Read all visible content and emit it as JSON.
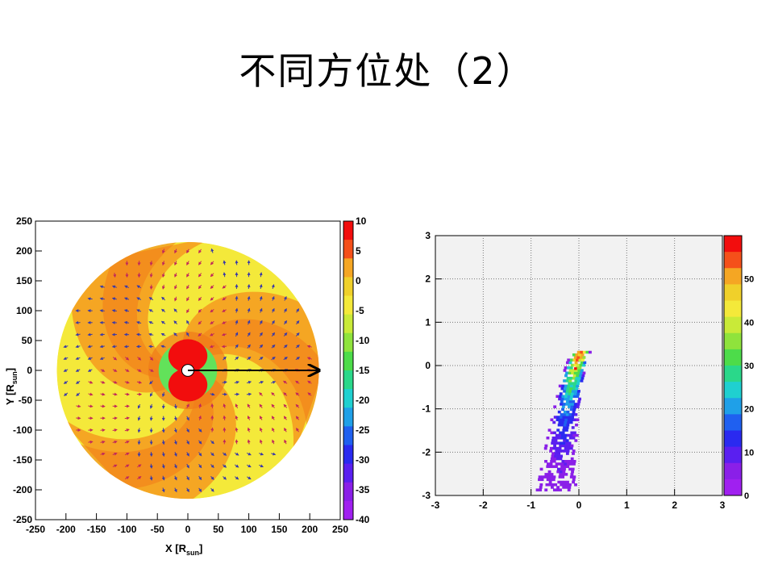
{
  "slide": {
    "title": "不同方位处（2）"
  },
  "chart_data": [
    {
      "type": "heatmap",
      "subtype": "polar-field-map-with-arrows",
      "xlabel": "X [R",
      "xlabel_sub": "sun",
      "xlabel_close": "]",
      "ylabel": "Y [R",
      "ylabel_sub": "sun",
      "ylabel_close": "]",
      "xlim": [
        -250,
        250
      ],
      "ylim": [
        -250,
        250
      ],
      "x_ticks": [
        -250,
        -200,
        -150,
        -100,
        -50,
        0,
        50,
        100,
        150,
        200,
        250
      ],
      "y_ticks": [
        -250,
        -200,
        -150,
        -100,
        -50,
        0,
        50,
        100,
        150,
        200,
        250
      ],
      "colorbar": {
        "min": -40,
        "max": 10,
        "ticks": [
          10,
          5,
          0,
          -5,
          -10,
          -15,
          -20,
          -25,
          -30,
          -35,
          -40
        ]
      },
      "outer_radius": 215,
      "spiral_sectors": 3,
      "line_arrow": {
        "from": [
          0,
          0
        ],
        "to": [
          215,
          0
        ]
      },
      "grid": false,
      "colors": {
        "orange": "#f5a623",
        "dark_orange": "#f07a1a",
        "yellow": "#f4e93a",
        "green": "#62e25a",
        "red": "#f20d0d",
        "arrow_red": "#c0285a",
        "arrow_blue": "#3a3aa8"
      }
    },
    {
      "type": "heatmap",
      "subtype": "2d-histogram",
      "xlim": [
        -3,
        3
      ],
      "ylim": [
        -3,
        3
      ],
      "x_ticks": [
        -3,
        -2,
        -1,
        0,
        1,
        2,
        3
      ],
      "y_ticks": [
        3,
        2,
        1,
        0,
        -1,
        -2,
        -3
      ],
      "colorbar": {
        "min": 0,
        "max": 60,
        "ticks": [
          50,
          40,
          30,
          20,
          10,
          0
        ]
      },
      "grid": true,
      "background": "#f2f2f2",
      "peak": {
        "x": -0.1,
        "y": -0.1,
        "value": 58
      },
      "distribution": "curved band from (0.1, 0.2) down to (-0.5, -2.8)"
    }
  ]
}
